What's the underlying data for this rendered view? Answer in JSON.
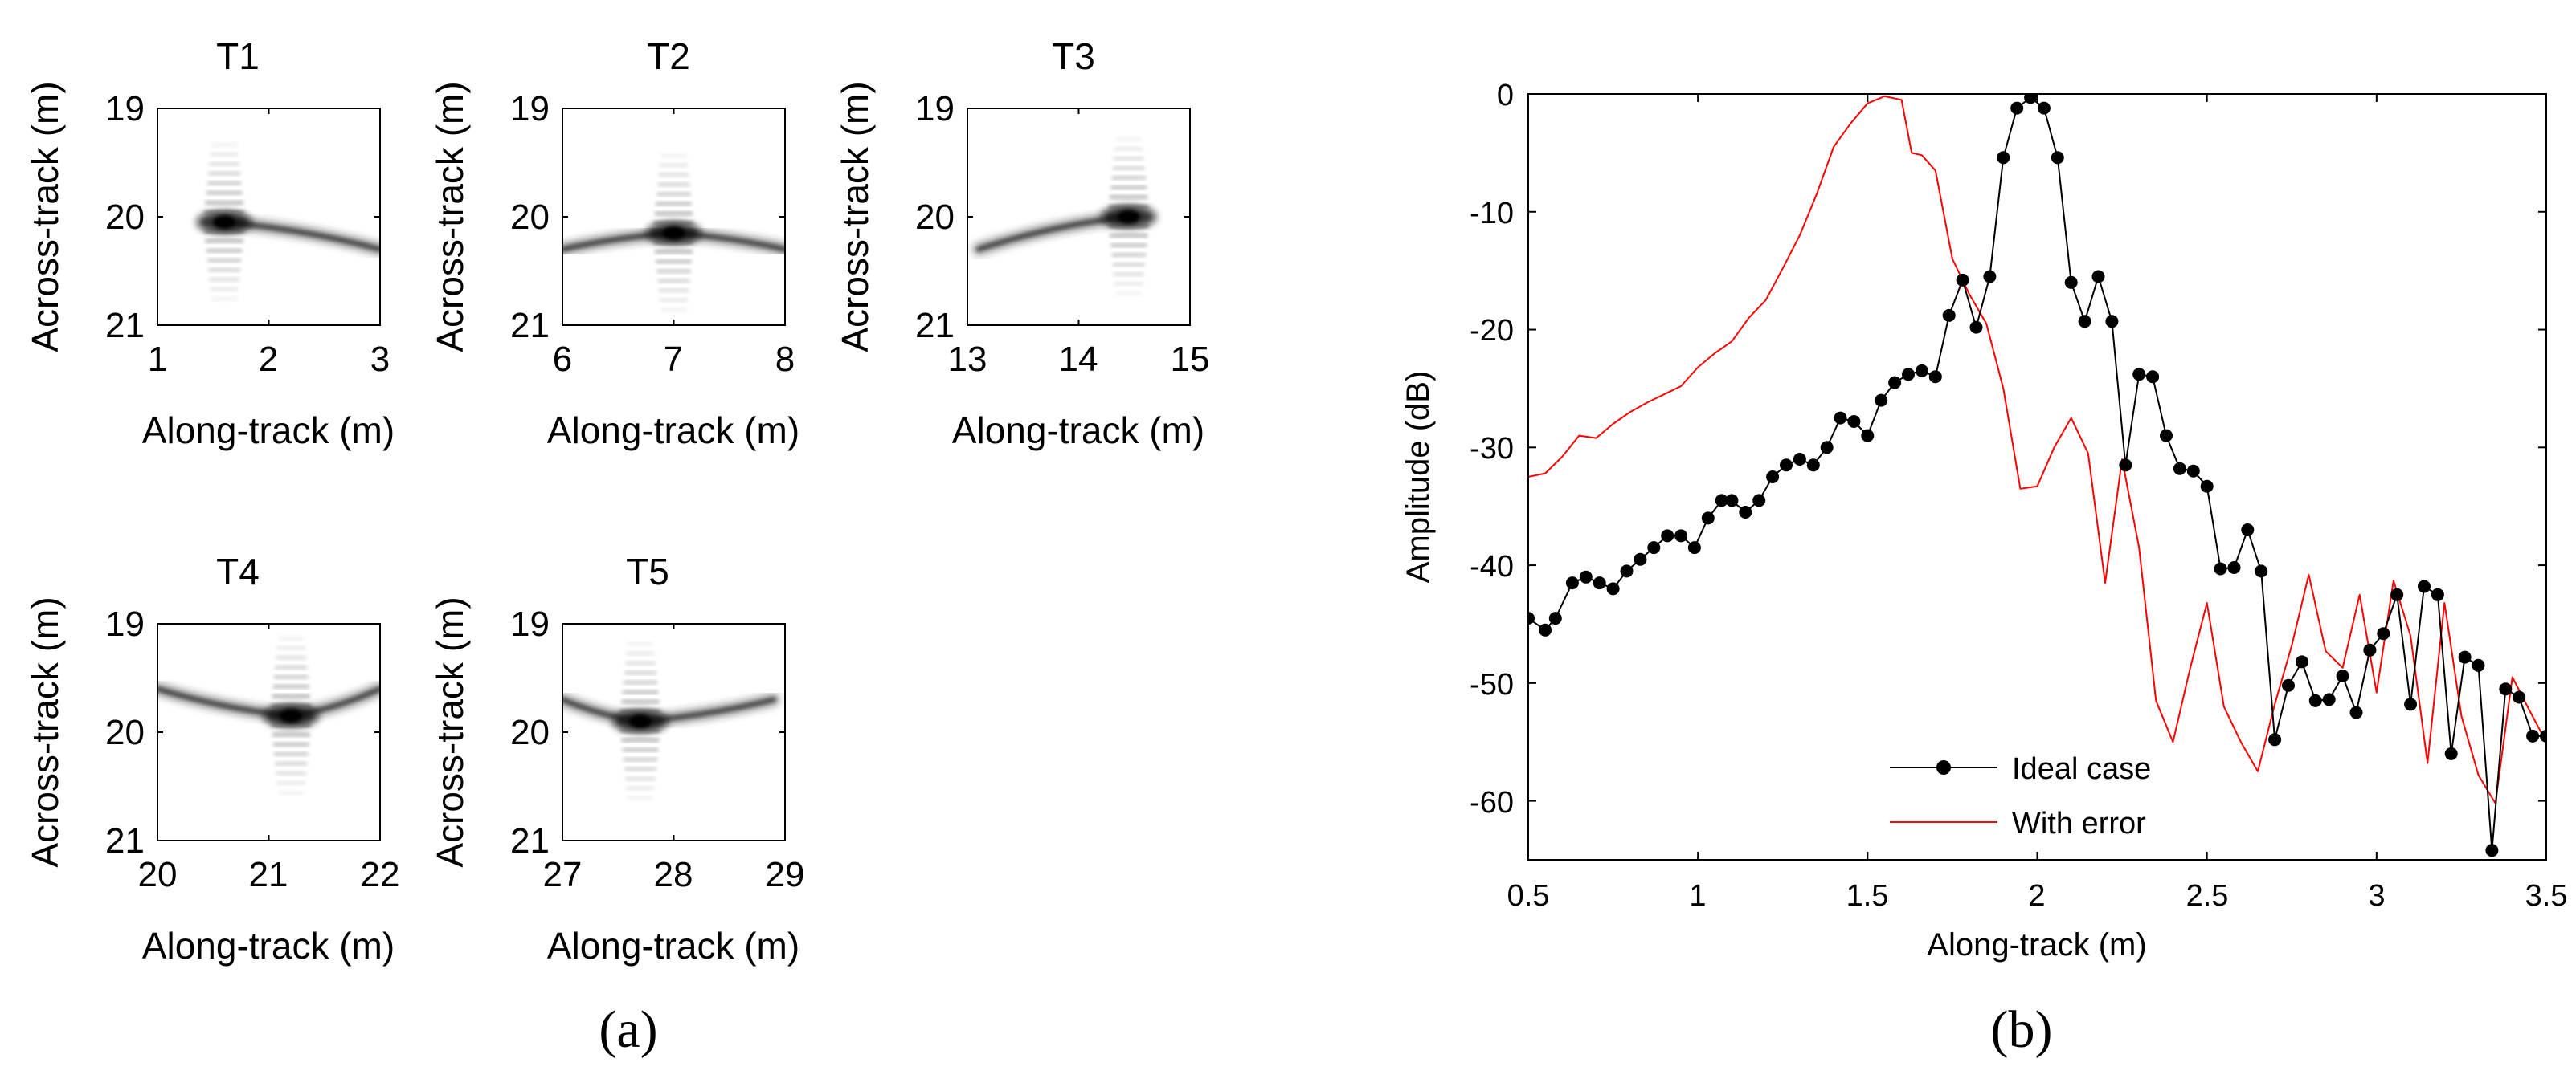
{
  "subplot_labels": {
    "a": "(a)",
    "b": "(b)"
  },
  "chart_data": [
    {
      "id": "T1",
      "type": "heatmap",
      "title": "T1",
      "xlabel": "Along-track (m)",
      "ylabel": "Across-track (m)",
      "xlim": [
        1,
        3
      ],
      "ylim": [
        19,
        21
      ],
      "xticks": [
        "1",
        "2",
        "3"
      ],
      "yticks": [
        "19",
        "20",
        "21"
      ],
      "target": {
        "x": 1.6,
        "y": 20.05
      },
      "tail": {
        "dir": "right",
        "x_end": 3.0,
        "y_end": 20.3
      }
    },
    {
      "id": "T2",
      "type": "heatmap",
      "title": "T2",
      "xlabel": "Along-track (m)",
      "ylabel": "Across-track (m)",
      "xlim": [
        6,
        8
      ],
      "ylim": [
        19,
        21
      ],
      "xticks": [
        "6",
        "7",
        "8"
      ],
      "yticks": [
        "19",
        "20",
        "21"
      ],
      "target": {
        "x": 7.0,
        "y": 20.15
      },
      "tail": {
        "dir": "both",
        "x_left": 6.0,
        "x_right": 8.0,
        "y_end": 20.3
      }
    },
    {
      "id": "T3",
      "type": "heatmap",
      "title": "T3",
      "xlabel": "Along-track (m)",
      "ylabel": "Across-track (m)",
      "xlim": [
        13,
        15
      ],
      "ylim": [
        19,
        21
      ],
      "xticks": [
        "13",
        "14",
        "15"
      ],
      "yticks": [
        "19",
        "20",
        "21"
      ],
      "target": {
        "x": 14.45,
        "y": 20.0
      },
      "tail": {
        "dir": "left",
        "x_end": 13.1,
        "y_end": 20.3
      }
    },
    {
      "id": "T4",
      "type": "heatmap",
      "title": "T4",
      "xlabel": "Along-track (m)",
      "ylabel": "Across-track (m)",
      "xlim": [
        20,
        22
      ],
      "ylim": [
        19,
        21
      ],
      "xticks": [
        "20",
        "21",
        "22"
      ],
      "yticks": [
        "19",
        "20",
        "21"
      ],
      "target": {
        "x": 21.2,
        "y": 19.85
      },
      "tail": {
        "dir": "both",
        "x_left": 20.0,
        "x_right": 22.0,
        "y_end": 19.6
      }
    },
    {
      "id": "T5",
      "type": "heatmap",
      "title": "T5",
      "xlabel": "Along-track (m)",
      "ylabel": "Across-track (m)",
      "xlim": [
        27,
        29
      ],
      "ylim": [
        19,
        21
      ],
      "xticks": [
        "27",
        "28",
        "29"
      ],
      "yticks": [
        "19",
        "20",
        "21"
      ],
      "target": {
        "x": 27.7,
        "y": 19.9
      },
      "tail": {
        "dir": "both",
        "x_left": 27.0,
        "x_right": 28.9,
        "y_end": 19.7
      }
    },
    {
      "id": "profile",
      "type": "line",
      "title": "",
      "xlabel": "Along-track (m)",
      "ylabel": "Amplitude (dB)",
      "xlim": [
        0.5,
        3.5
      ],
      "ylim": [
        -65,
        0
      ],
      "xticks": [
        "0.5",
        "1",
        "1.5",
        "2",
        "2.5",
        "3",
        "3.5"
      ],
      "yticks": [
        "0",
        "-10",
        "-20",
        "-30",
        "-40",
        "-50",
        "-60"
      ],
      "legend": {
        "position": "bottom-center",
        "entries": [
          "Ideal case",
          "With error"
        ]
      },
      "series": [
        {
          "name": "Ideal case",
          "color": "#000000",
          "marker": "circle",
          "x": [
            0.5,
            0.55,
            0.58,
            0.63,
            0.67,
            0.71,
            0.75,
            0.79,
            0.83,
            0.87,
            0.91,
            0.95,
            0.99,
            1.03,
            1.07,
            1.1,
            1.14,
            1.18,
            1.22,
            1.26,
            1.3,
            1.34,
            1.38,
            1.42,
            1.46,
            1.5,
            1.54,
            1.58,
            1.62,
            1.66,
            1.7,
            1.74,
            1.78,
            1.82,
            1.86,
            1.9,
            1.94,
            1.98,
            2.02,
            2.06,
            2.1,
            2.14,
            2.18,
            2.22,
            2.26,
            2.3,
            2.34,
            2.38,
            2.42,
            2.46,
            2.5,
            2.54,
            2.58,
            2.62,
            2.66,
            2.7,
            2.74,
            2.78,
            2.82,
            2.86,
            2.9,
            2.94,
            2.98,
            3.02,
            3.06,
            3.1,
            3.14,
            3.18,
            3.22,
            3.26,
            3.3,
            3.34,
            3.38,
            3.42,
            3.46,
            3.5
          ],
          "y": [
            -44.5,
            -45.5,
            -44.5,
            -41.5,
            -41,
            -41.5,
            -42,
            -40.5,
            -39.5,
            -38.5,
            -37.5,
            -37.5,
            -38.5,
            -36,
            -34.5,
            -34.5,
            -35.5,
            -34.5,
            -32.5,
            -31.5,
            -31,
            -31.5,
            -30,
            -27.5,
            -27.8,
            -29,
            -26,
            -24.5,
            -23.8,
            -23.5,
            -24,
            -18.8,
            -15.8,
            -19.8,
            -15.5,
            -5.4,
            -1.2,
            -0.3,
            -1.2,
            -5.4,
            -16,
            -19.3,
            -15.5,
            -19.3,
            -31.5,
            -23.8,
            -24,
            -29,
            -31.8,
            -32,
            -33.3,
            -40.3,
            -40.2,
            -37,
            -40.5,
            -54.8,
            -50.2,
            -48.2,
            -51.5,
            -51.4,
            -49.4,
            -52.5,
            -47.2,
            -45.8,
            -42.5,
            -51.8,
            -41.8,
            -42.5,
            -56,
            -47.8,
            -48.5,
            -64.2,
            -50.5,
            -51.2,
            -54.5,
            -54.5
          ]
        },
        {
          "name": "With error",
          "color": "#ff0000",
          "marker": "none",
          "x": [
            0.5,
            0.55,
            0.6,
            0.65,
            0.7,
            0.75,
            0.8,
            0.85,
            0.9,
            0.95,
            1.0,
            1.05,
            1.1,
            1.15,
            1.2,
            1.25,
            1.3,
            1.35,
            1.4,
            1.45,
            1.5,
            1.55,
            1.6,
            1.63,
            1.66,
            1.7,
            1.75,
            1.8,
            1.85,
            1.9,
            1.95,
            2.0,
            2.05,
            2.1,
            2.15,
            2.2,
            2.25,
            2.3,
            2.35,
            2.4,
            2.45,
            2.5,
            2.55,
            2.6,
            2.65,
            2.7,
            2.75,
            2.8,
            2.85,
            2.9,
            2.95,
            3.0,
            3.05,
            3.1,
            3.15,
            3.2,
            3.25,
            3.3,
            3.35,
            3.4,
            3.45,
            3.5
          ],
          "y": [
            -32.5,
            -32.2,
            -30.8,
            -29,
            -29.2,
            -28,
            -27,
            -26.2,
            -25.5,
            -24.8,
            -23.2,
            -22,
            -21,
            -19,
            -17.5,
            -14.8,
            -12,
            -8.5,
            -4.5,
            -2.5,
            -0.8,
            -0.2,
            -0.5,
            -5,
            -5.2,
            -6.5,
            -14,
            -17,
            -19.5,
            -25,
            -33.5,
            -33.3,
            -30,
            -27.5,
            -30.5,
            -41.5,
            -31,
            -38.5,
            -51.5,
            -55,
            -48.8,
            -43.2,
            -52,
            -55,
            -57.5,
            -51.8,
            -46.8,
            -40.8,
            -47.3,
            -48.7,
            -42.5,
            -50.8,
            -41.3,
            -46,
            -56.8,
            -43.2,
            -52.8,
            -57.8,
            -60.2,
            -49.5,
            -52.3,
            -55
          ]
        }
      ]
    }
  ]
}
